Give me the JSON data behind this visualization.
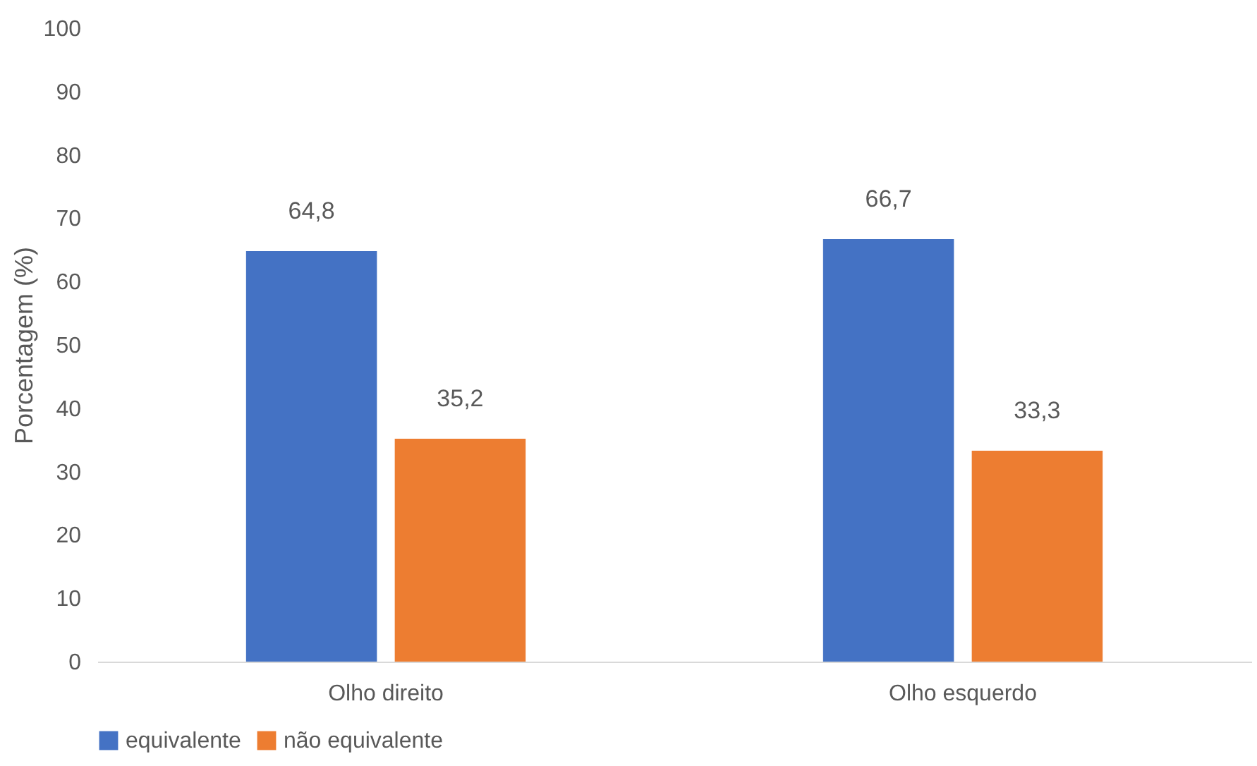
{
  "chart_data": {
    "type": "bar",
    "ylabel": "Porcentagem (%)",
    "categories": [
      "Olho direito",
      "Olho esquerdo"
    ],
    "series": [
      {
        "name": "equivalente",
        "color": "#4472c4",
        "values": [
          64.8,
          66.7
        ],
        "value_labels": [
          "64,8",
          "66,7"
        ]
      },
      {
        "name": "não equivalente",
        "color": "#ed7d31",
        "values": [
          35.2,
          33.3
        ],
        "value_labels": [
          "35,2",
          "33,3"
        ]
      }
    ],
    "ylim": [
      0,
      100
    ],
    "yticks": [
      0,
      10,
      20,
      30,
      40,
      50,
      60,
      70,
      80,
      90,
      100
    ],
    "grid": false,
    "legend": "bottom"
  }
}
